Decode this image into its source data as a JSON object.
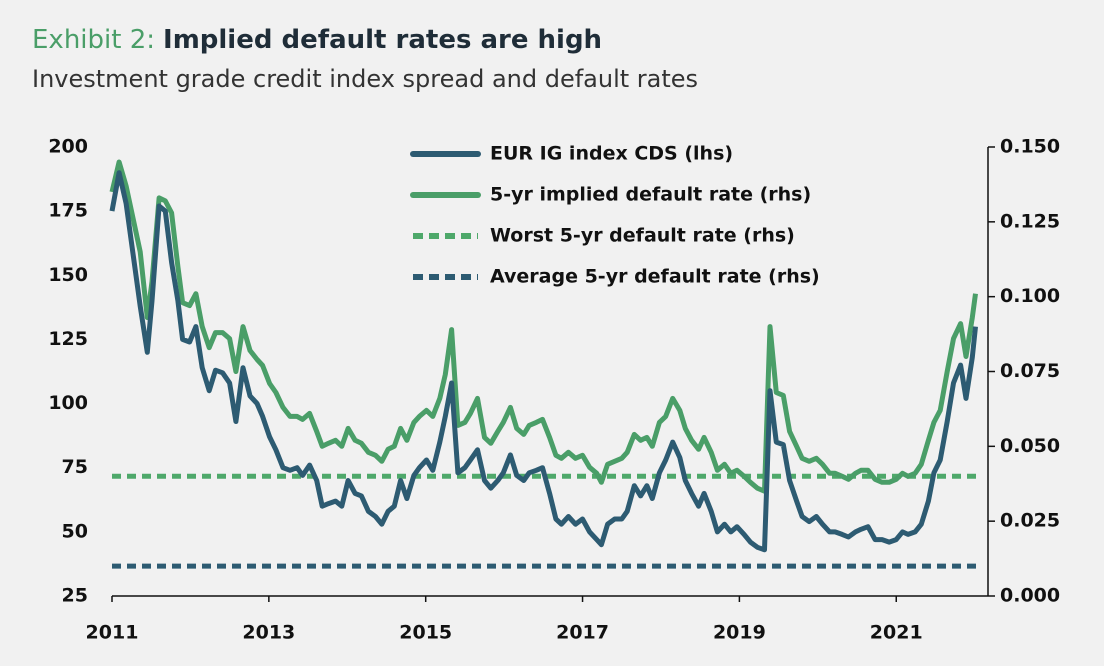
{
  "chart_data": {
    "type": "line",
    "title_label": "Exhibit 2:",
    "title": "Implied default rates are high",
    "subtitle": "Investment grade credit index spread and default rates",
    "x": [
      2011.0,
      2011.09,
      2011.18,
      2011.36,
      2011.45,
      2011.51,
      2011.6,
      2011.68,
      2011.76,
      2011.84,
      2011.9,
      2011.99,
      2012.07,
      2012.15,
      2012.24,
      2012.32,
      2012.41,
      2012.5,
      2012.58,
      2012.67,
      2012.76,
      2012.85,
      2012.92,
      2013.01,
      2013.09,
      2013.18,
      2013.27,
      2013.36,
      2013.43,
      2013.52,
      2013.61,
      2013.68,
      2013.76,
      2013.85,
      2013.93,
      2014.01,
      2014.1,
      2014.18,
      2014.27,
      2014.36,
      2014.44,
      2014.52,
      2014.6,
      2014.68,
      2014.76,
      2014.85,
      2014.92,
      2015.01,
      2015.09,
      2015.18,
      2015.25,
      2015.33,
      2015.41,
      2015.5,
      2015.57,
      2015.66,
      2015.75,
      2015.83,
      2015.92,
      2015.99,
      2016.08,
      2016.16,
      2016.25,
      2016.32,
      2016.41,
      2016.49,
      2016.58,
      2016.66,
      2016.73,
      2016.82,
      2016.91,
      2017.0,
      2017.09,
      2017.18,
      2017.24,
      2017.32,
      2017.41,
      2017.5,
      2017.57,
      2017.66,
      2017.74,
      2017.82,
      2017.89,
      2017.98,
      2018.06,
      2018.15,
      2018.24,
      2018.31,
      2018.39,
      2018.48,
      2018.55,
      2018.64,
      2018.72,
      2018.81,
      2018.89,
      2018.97,
      2019.06,
      2019.14,
      2019.23,
      2019.32,
      2019.39,
      2019.47,
      2019.56,
      2019.64,
      2019.73,
      2019.8,
      2019.89,
      2019.98,
      2020.06,
      2020.15,
      2020.22,
      2020.31,
      2020.39,
      2020.48,
      2020.55,
      2020.64,
      2020.73,
      2020.82,
      2020.91,
      2021.0,
      2021.08,
      2021.15,
      2021.24,
      2021.32,
      2021.41,
      2021.48,
      2021.56,
      2021.65,
      2021.73,
      2021.82,
      2021.89,
      2021.97,
      2022.01
    ],
    "series": [
      {
        "name": "EUR IG index CDS (lhs)",
        "color": "#2d5b72",
        "axis": "y",
        "values": [
          175,
          190,
          178,
          138,
          120,
          140,
          177,
          175,
          155,
          140,
          125,
          124,
          130,
          114,
          105,
          113,
          112,
          108,
          93,
          114,
          103,
          100,
          95,
          87,
          82,
          75,
          74,
          75,
          72,
          76,
          70,
          60,
          61,
          62,
          60,
          70,
          65,
          64,
          58,
          56,
          53,
          58,
          60,
          70,
          63,
          72,
          75,
          78,
          74,
          85,
          95,
          108,
          73,
          75,
          78,
          82,
          70,
          67,
          70,
          73,
          80,
          72,
          70,
          73,
          74,
          75,
          65,
          55,
          53,
          56,
          53,
          55,
          50,
          47,
          45,
          53,
          55,
          55,
          58,
          68,
          64,
          68,
          63,
          73,
          78,
          85,
          79,
          70,
          65,
          60,
          65,
          58,
          50,
          53,
          50,
          52,
          49,
          46,
          44,
          43,
          105,
          85,
          84,
          70,
          62,
          56,
          54,
          56,
          53,
          50,
          50,
          49,
          48,
          50,
          51,
          52,
          47,
          47,
          46,
          47,
          50,
          49,
          50,
          53,
          62,
          73,
          78,
          93,
          108,
          115,
          102,
          118,
          130
        ]
      },
      {
        "name": "5-yr implied default rate (rhs)",
        "color": "#4a9e68",
        "axis": "y2",
        "values": [
          0.135,
          0.145,
          0.137,
          0.115,
          0.093,
          0.105,
          0.133,
          0.132,
          0.128,
          0.11,
          0.098,
          0.097,
          0.101,
          0.09,
          0.083,
          0.088,
          0.088,
          0.086,
          0.075,
          0.09,
          0.082,
          0.079,
          0.077,
          0.071,
          0.068,
          0.063,
          0.06,
          0.06,
          0.059,
          0.061,
          0.055,
          0.05,
          0.051,
          0.052,
          0.05,
          0.056,
          0.052,
          0.051,
          0.048,
          0.047,
          0.045,
          0.049,
          0.05,
          0.056,
          0.052,
          0.058,
          0.06,
          0.062,
          0.06,
          0.066,
          0.074,
          0.089,
          0.057,
          0.058,
          0.061,
          0.066,
          0.053,
          0.051,
          0.055,
          0.058,
          0.063,
          0.056,
          0.054,
          0.057,
          0.058,
          0.059,
          0.053,
          0.047,
          0.046,
          0.048,
          0.046,
          0.047,
          0.043,
          0.041,
          0.038,
          0.044,
          0.045,
          0.046,
          0.048,
          0.054,
          0.052,
          0.053,
          0.05,
          0.058,
          0.06,
          0.066,
          0.062,
          0.056,
          0.052,
          0.049,
          0.053,
          0.048,
          0.042,
          0.044,
          0.041,
          0.042,
          0.04,
          0.038,
          0.036,
          0.035,
          0.09,
          0.068,
          0.067,
          0.055,
          0.05,
          0.046,
          0.045,
          0.046,
          0.044,
          0.041,
          0.041,
          0.04,
          0.039,
          0.041,
          0.042,
          0.042,
          0.039,
          0.038,
          0.038,
          0.039,
          0.041,
          0.04,
          0.041,
          0.044,
          0.052,
          0.058,
          0.062,
          0.075,
          0.086,
          0.091,
          0.08,
          0.093,
          0.101
        ]
      }
    ],
    "reference_lines": [
      {
        "name": "Worst 5-yr default rate (rhs)",
        "color": "#4ea86a",
        "axis": "y2",
        "value": 0.04
      },
      {
        "name": "Average 5-yr default rate (rhs)",
        "color": "#2d5b72",
        "axis": "y2",
        "value": 0.01
      }
    ],
    "xlim": [
      2011,
      2022.17
    ],
    "xticks": [
      2011,
      2013,
      2015,
      2017,
      2019,
      2021
    ],
    "ylim": [
      25,
      200
    ],
    "yticks": [
      25,
      50,
      75,
      100,
      125,
      150,
      175,
      200
    ],
    "y2lim": [
      0,
      0.15
    ],
    "y2ticks": [
      {
        "value": 0,
        "label": "0.000"
      },
      {
        "value": 0.025,
        "label": "0.025"
      },
      {
        "value": 0.05,
        "label": "0.050"
      },
      {
        "value": 0.075,
        "label": "0.075"
      },
      {
        "value": 0.1,
        "label": "0.100"
      },
      {
        "value": 0.125,
        "label": "0.125"
      },
      {
        "value": 0.15,
        "label": "0.150"
      }
    ],
    "legend": "top-center"
  }
}
